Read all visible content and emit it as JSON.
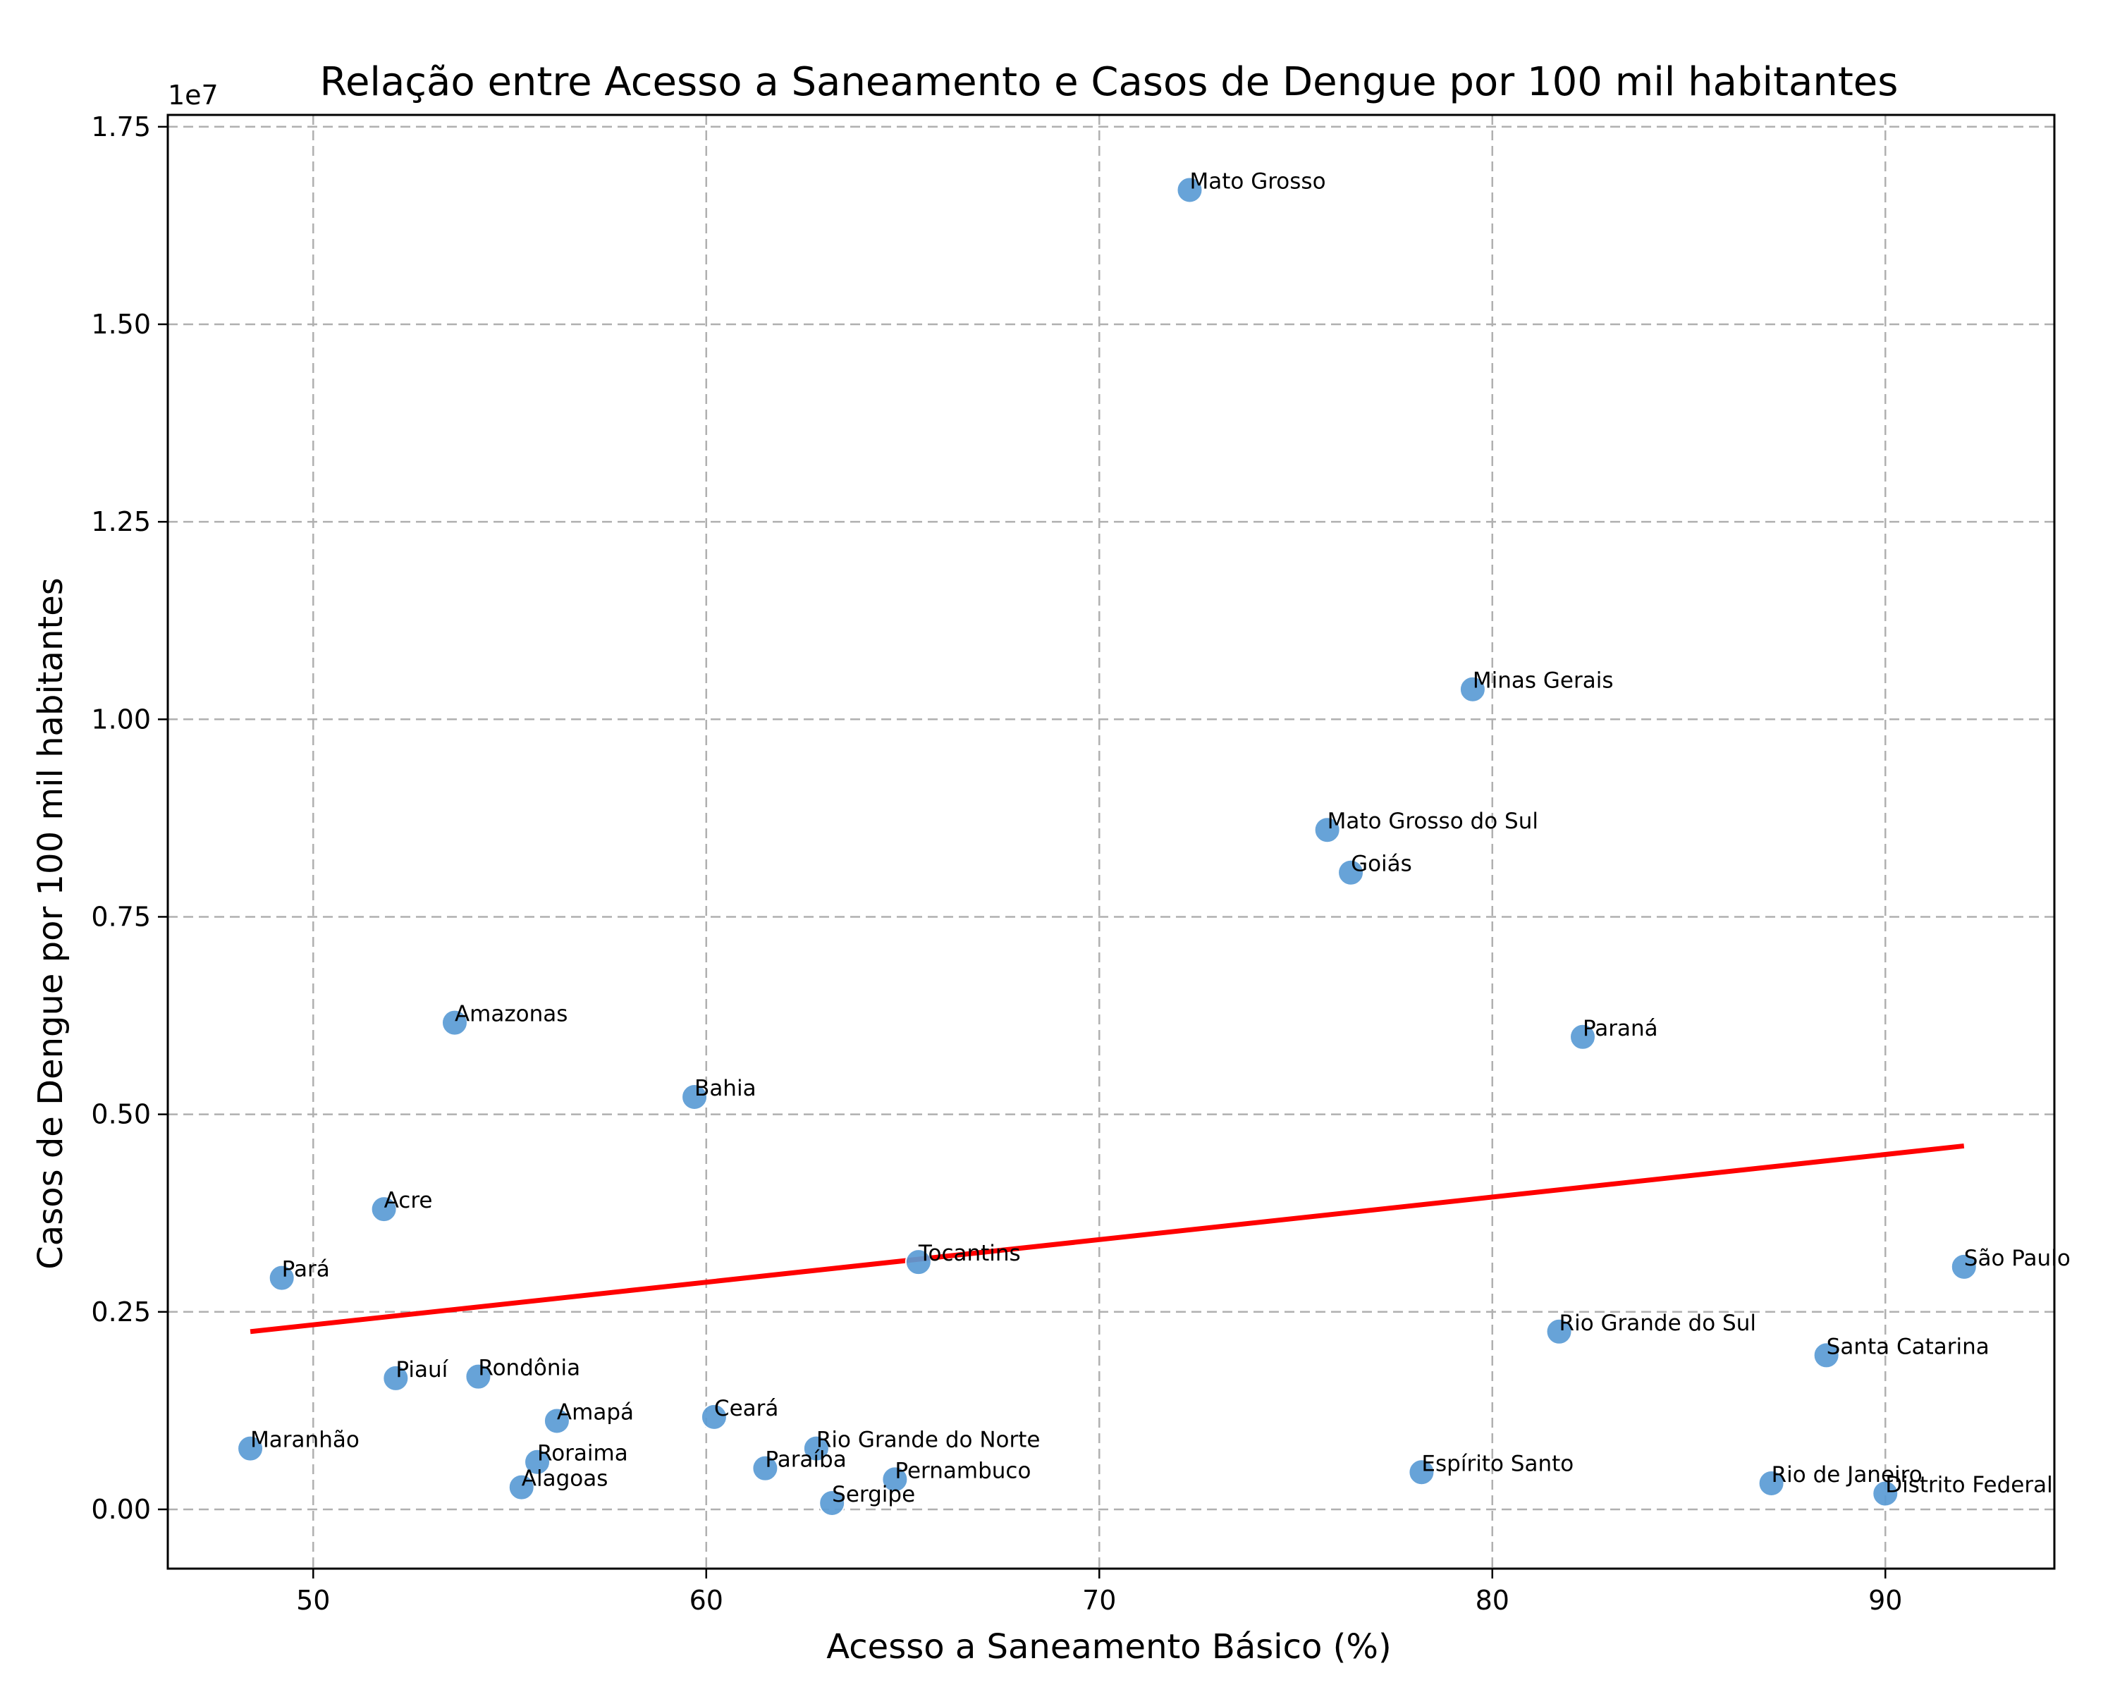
{
  "chart_data": {
    "type": "scatter",
    "title": "Relação entre Acesso a Saneamento e Casos de Dengue por 100 mil habitantes",
    "xlabel": "Acesso a Saneamento Básico (%)",
    "ylabel": "Casos de Dengue por 100 mil habitantes",
    "y_offset_label": "1e7",
    "xlim": [
      46.3,
      94.3
    ],
    "ylim": [
      -750000,
      17650000
    ],
    "x_ticks": [
      50,
      60,
      70,
      80,
      90
    ],
    "x_tick_labels": [
      "50",
      "60",
      "70",
      "80",
      "90"
    ],
    "y_ticks": [
      0,
      2500000,
      5000000,
      7500000,
      10000000,
      12500000,
      15000000,
      17500000
    ],
    "y_tick_labels": [
      "0.00",
      "0.25",
      "0.50",
      "0.75",
      "1.00",
      "1.25",
      "1.50",
      "1.75"
    ],
    "grid": true,
    "point_color": "#5a9bd5",
    "trend_color": "#ff0000",
    "trendline": {
      "x": [
        48.4,
        92.0
      ],
      "y": [
        2250000,
        4600000
      ]
    },
    "points": [
      {
        "label": "Mato Grosso",
        "x": 72.3,
        "y": 16700000
      },
      {
        "label": "Minas Gerais",
        "x": 79.5,
        "y": 10380000
      },
      {
        "label": "Mato Grosso do Sul",
        "x": 75.8,
        "y": 8600000
      },
      {
        "label": "Goiás",
        "x": 76.4,
        "y": 8060000
      },
      {
        "label": "Amazonas",
        "x": 53.6,
        "y": 6160000
      },
      {
        "label": "Paraná",
        "x": 82.3,
        "y": 5980000
      },
      {
        "label": "Bahia",
        "x": 59.7,
        "y": 5220000
      },
      {
        "label": "Acre",
        "x": 51.8,
        "y": 3800000
      },
      {
        "label": "Tocantins",
        "x": 65.4,
        "y": 3130000
      },
      {
        "label": "São Paulo",
        "x": 92.0,
        "y": 3070000
      },
      {
        "label": "Pará",
        "x": 49.2,
        "y": 2930000
      },
      {
        "label": "Rio Grande do Sul",
        "x": 81.7,
        "y": 2250000
      },
      {
        "label": "Santa Catarina",
        "x": 88.5,
        "y": 1950000
      },
      {
        "label": "Rondônia",
        "x": 54.2,
        "y": 1680000
      },
      {
        "label": "Piauí",
        "x": 52.1,
        "y": 1660000
      },
      {
        "label": "Ceará",
        "x": 60.2,
        "y": 1170000
      },
      {
        "label": "Amapá",
        "x": 56.2,
        "y": 1120000
      },
      {
        "label": "Rio Grande do Norte",
        "x": 62.8,
        "y": 770000
      },
      {
        "label": "Maranhão",
        "x": 48.4,
        "y": 770000
      },
      {
        "label": "Roraima",
        "x": 55.7,
        "y": 600000
      },
      {
        "label": "Paraíba",
        "x": 61.5,
        "y": 520000
      },
      {
        "label": "Espírito Santo",
        "x": 78.2,
        "y": 470000
      },
      {
        "label": "Pernambuco",
        "x": 64.8,
        "y": 380000
      },
      {
        "label": "Rio de Janeiro",
        "x": 87.1,
        "y": 330000
      },
      {
        "label": "Alagoas",
        "x": 55.3,
        "y": 280000
      },
      {
        "label": "Distrito Federal",
        "x": 90.0,
        "y": 200000
      },
      {
        "label": "Sergipe",
        "x": 63.2,
        "y": 80000
      }
    ]
  }
}
